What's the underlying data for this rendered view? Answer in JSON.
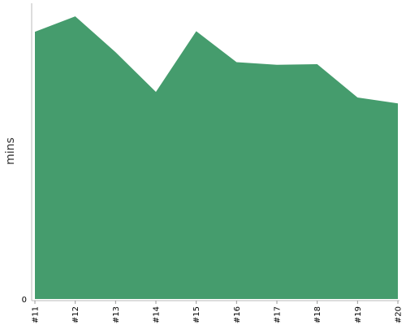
{
  "chart_data": {
    "type": "area",
    "title": "",
    "xlabel": "",
    "ylabel": "mins",
    "categories": [
      "#11",
      "#12",
      "#13",
      "#14",
      "#15",
      "#16",
      "#17",
      "#18",
      "#19",
      "#20"
    ],
    "series": [
      {
        "values": [
          91.5,
          96.8,
          84.5,
          70.9,
          91.7,
          81.1,
          80.2,
          80.4,
          69.0,
          67.0
        ]
      }
    ],
    "y_tick_labels": [
      "0"
    ],
    "ylim": [
      0,
      101
    ],
    "grid": false,
    "legend": "none",
    "colors": {
      "fill": "#459c6d",
      "axis": "#bbbbbb",
      "tick": "#999999"
    }
  }
}
